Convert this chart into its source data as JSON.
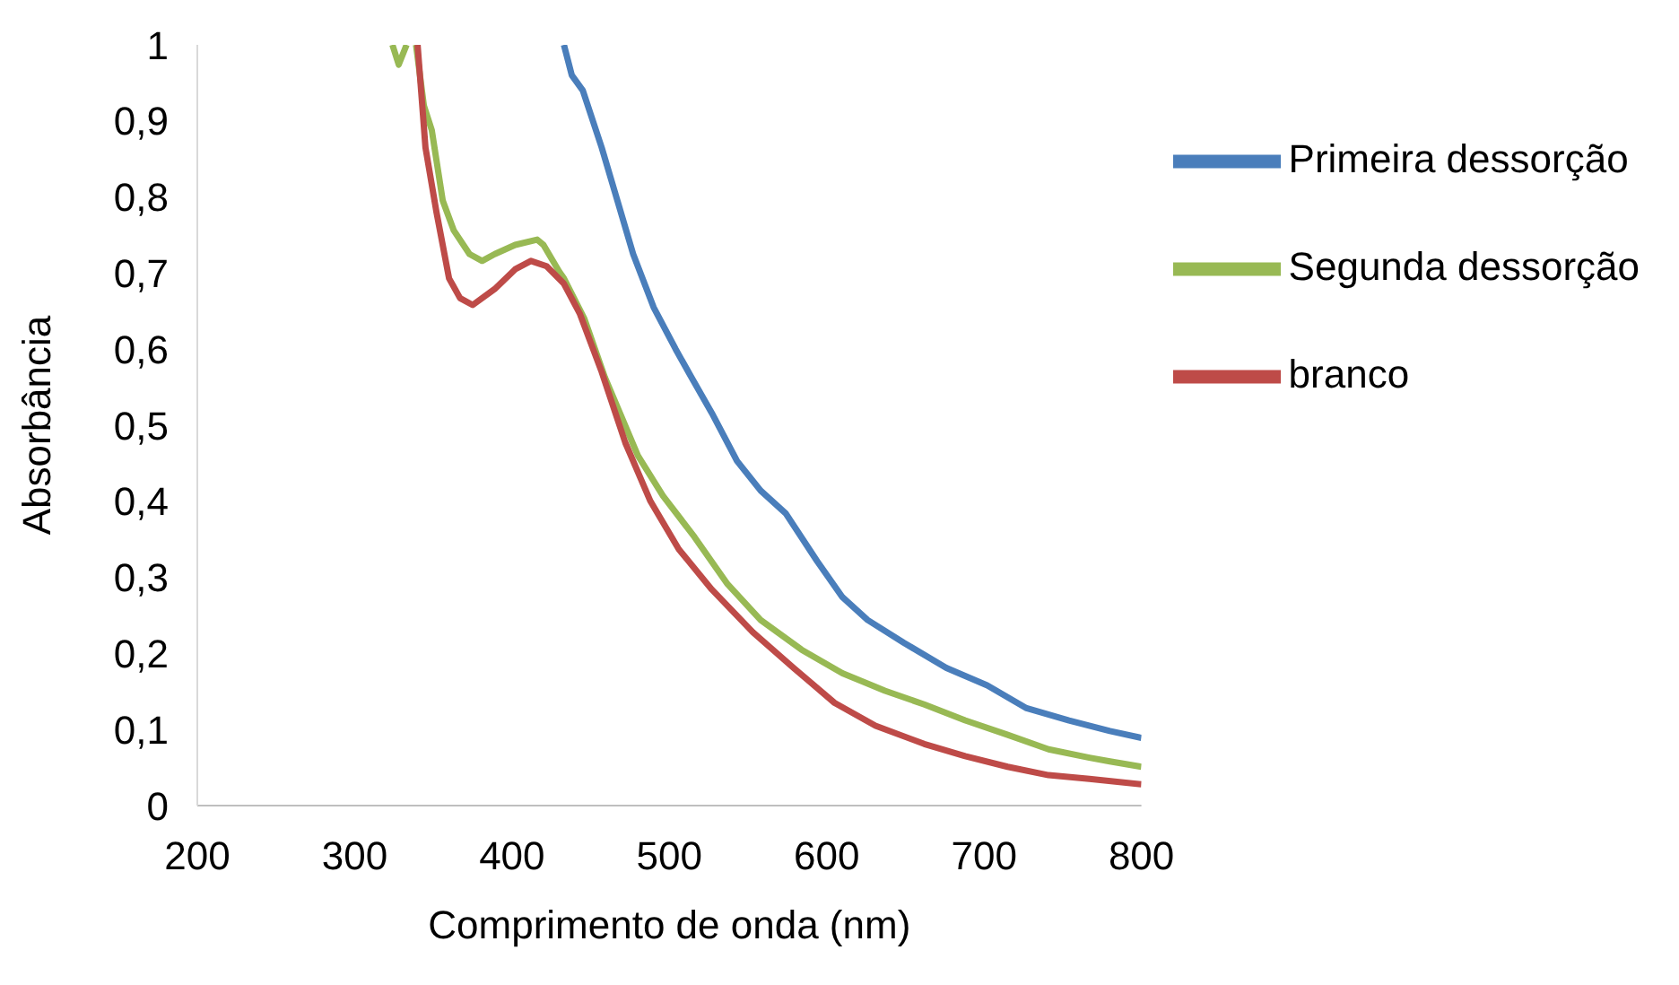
{
  "chart_data": {
    "type": "line",
    "xlabel": "Comprimento de onda (nm)",
    "ylabel": "Absorbância",
    "xlim": [
      200,
      800
    ],
    "xticks": [
      200,
      300,
      400,
      500,
      600,
      700,
      800
    ],
    "ylim": [
      0,
      1
    ],
    "yticks": [
      0,
      {
        "value": 0.1,
        "label": "0,1"
      },
      {
        "value": 0.2,
        "label": "0,2"
      },
      {
        "value": 0.3,
        "label": "0,3"
      },
      {
        "value": 0.4,
        "label": "0,4"
      },
      {
        "value": 0.5,
        "label": "0,5"
      },
      {
        "value": 0.6,
        "label": "0,6"
      },
      {
        "value": 0.7,
        "label": "0,7"
      },
      {
        "value": 0.8,
        "label": "0,8"
      },
      {
        "value": 0.9,
        "label": "0,9"
      },
      1
    ],
    "grid": false,
    "legend": "right",
    "marker": "none",
    "line_style": "solid",
    "series": [
      {
        "name": "Primeira dessorção",
        "color": "#4a7ebb",
        "x": [
          433,
          438,
          445,
          457,
          467,
          477,
          490,
          504,
          514,
          527,
          543,
          558,
          574,
          594,
          610,
          626,
          649,
          676,
          702,
          727,
          754,
          780,
          800
        ],
        "values": [
          1.0,
          0.96,
          0.94,
          0.865,
          0.795,
          0.725,
          0.655,
          0.6,
          0.563,
          0.516,
          0.453,
          0.414,
          0.384,
          0.321,
          0.274,
          0.244,
          0.214,
          0.181,
          0.158,
          0.128,
          0.112,
          0.098,
          0.089
        ]
      },
      {
        "name": "Segunda dessorção",
        "color": "#98b954",
        "x": [
          324,
          328,
          333,
          336,
          339,
          344,
          349,
          356,
          363,
          373,
          381,
          389,
          402,
          416,
          420,
          430,
          433,
          446,
          459,
          480,
          496,
          516,
          537,
          558,
          584,
          610,
          637,
          662,
          688,
          715,
          741,
          767,
          780,
          800
        ],
        "values": [
          1.0,
          0.974,
          1.0,
          null,
          1.0,
          0.92,
          0.888,
          0.795,
          0.756,
          0.725,
          0.716,
          0.725,
          0.737,
          0.744,
          0.737,
          0.702,
          0.693,
          0.64,
          0.563,
          0.46,
          0.407,
          0.353,
          0.291,
          0.244,
          0.205,
          0.174,
          0.151,
          0.133,
          0.112,
          0.093,
          0.074,
          0.063,
          0.058,
          0.051
        ]
      },
      {
        "name": "branco",
        "color": "#be4b48",
        "x": [
          340,
          345,
          352,
          360,
          367,
          375,
          389,
          402,
          412,
          422,
          433,
          443,
          457,
          472,
          488,
          506,
          527,
          553,
          579,
          605,
          631,
          662,
          688,
          715,
          741,
          767,
          800
        ],
        "values": [
          1.0,
          0.865,
          0.78,
          0.693,
          0.667,
          0.658,
          0.679,
          0.705,
          0.716,
          0.709,
          0.686,
          0.647,
          0.57,
          0.477,
          0.4,
          0.337,
          0.284,
          0.228,
          0.181,
          0.135,
          0.105,
          0.081,
          0.065,
          0.051,
          0.04,
          0.035,
          0.028
        ]
      }
    ]
  }
}
